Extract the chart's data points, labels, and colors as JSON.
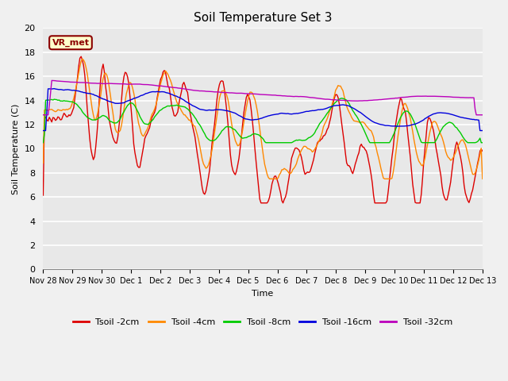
{
  "title": "Soil Temperature Set 3",
  "xlabel": "Time",
  "ylabel": "Soil Temperature (C)",
  "ylim": [
    0,
    20
  ],
  "yticks": [
    0,
    2,
    4,
    6,
    8,
    10,
    12,
    14,
    16,
    18,
    20
  ],
  "fig_bg_color": "#f0f0f0",
  "plot_bg_color": "#e8e8e8",
  "grid_color": "#ffffff",
  "series_colors": [
    "#dd0000",
    "#ff8800",
    "#00cc00",
    "#0000dd",
    "#bb00bb"
  ],
  "series_labels": [
    "Tsoil -2cm",
    "Tsoil -4cm",
    "Tsoil -8cm",
    "Tsoil -16cm",
    "Tsoil -32cm"
  ],
  "x_tick_labels": [
    "Nov 28",
    "Nov 29",
    "Nov 30",
    "Dec 1",
    "Dec 2",
    "Dec 3",
    "Dec 4",
    "Dec 5",
    "Dec 6",
    "Dec 7",
    "Dec 8",
    "Dec 9",
    "Dec 10",
    "Dec 11",
    "Dec 12",
    "Dec 13"
  ],
  "annotation_text": "VR_met",
  "vr_box_facecolor": "#ffffcc",
  "vr_box_edgecolor": "#8B0000"
}
